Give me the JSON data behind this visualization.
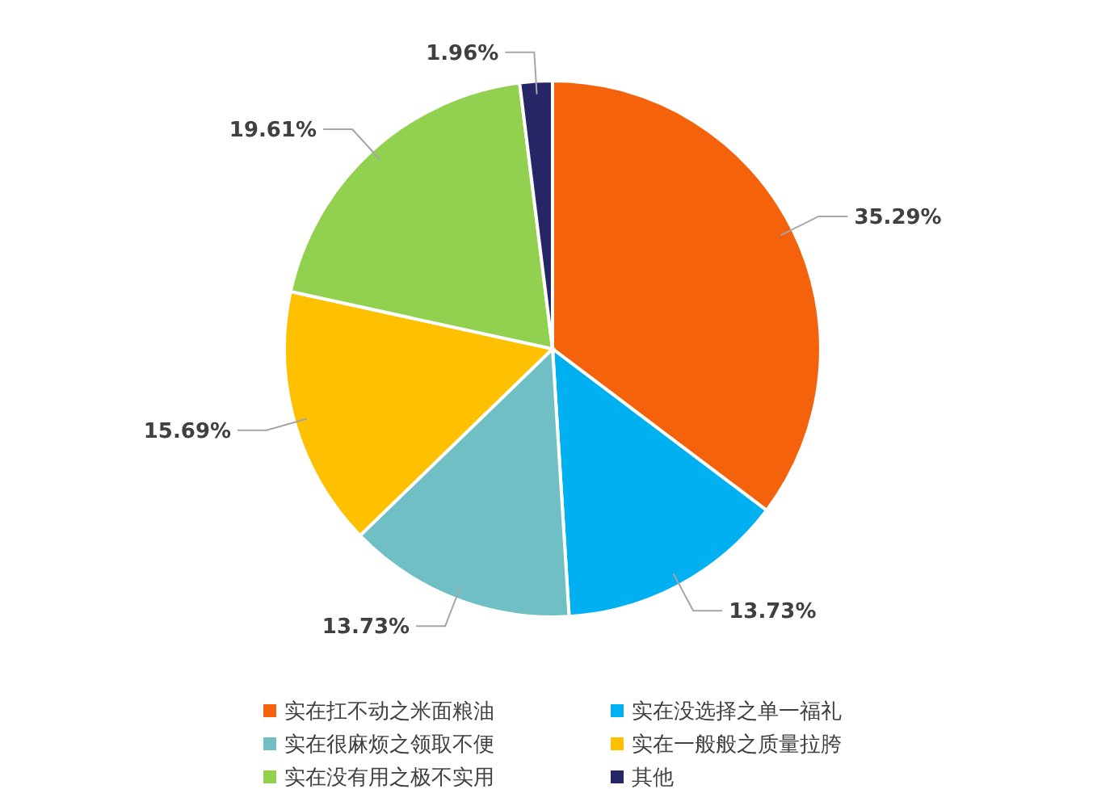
{
  "chart_data": {
    "type": "pie",
    "categories": [
      "实在扛不动之米面粮油",
      "实在没选择之单一福礼",
      "实在很麻烦之领取不便",
      "实在一般般之质量拉胯",
      "实在没有用之极不实用",
      "其他"
    ],
    "values": [
      35.29,
      13.73,
      13.73,
      15.69,
      19.61,
      1.96
    ],
    "value_labels": [
      "35.29%",
      "13.73%",
      "13.73%",
      "15.69%",
      "19.61%",
      "1.96%"
    ],
    "colors": [
      "#f5620c",
      "#00b0f0",
      "#70bfc5",
      "#ffc000",
      "#92d050",
      "#262666"
    ],
    "legend": "bottom"
  }
}
